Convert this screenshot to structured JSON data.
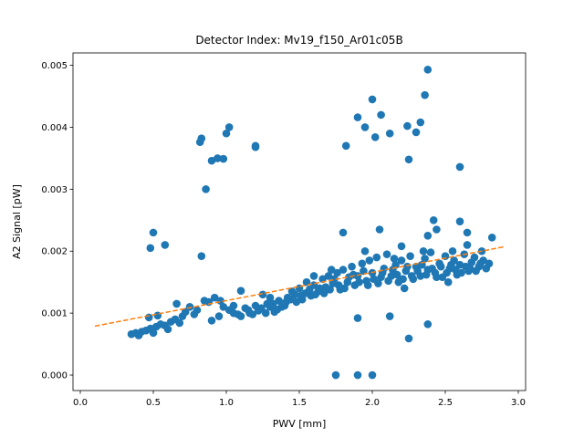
{
  "chart_data": {
    "type": "scatter",
    "title": "Detector Index: Mv19_f150_Ar01c05B",
    "xlabel": "PWV [mm]",
    "ylabel": "A2 Signal [pW]",
    "xlim": [
      -0.05,
      3.05
    ],
    "ylim": [
      -0.00025,
      0.0052
    ],
    "xticks": [
      0.0,
      0.5,
      1.0,
      1.5,
      2.0,
      2.5,
      3.0
    ],
    "xtick_labels": [
      "0.0",
      "0.5",
      "1.0",
      "1.5",
      "2.0",
      "2.5",
      "3.0"
    ],
    "yticks": [
      0.0,
      0.001,
      0.002,
      0.003,
      0.004,
      0.005
    ],
    "ytick_labels": [
      "0.000",
      "0.001",
      "0.002",
      "0.003",
      "0.004",
      "0.005"
    ],
    "colors": {
      "points": "#1f77b4",
      "fit": "#ff7f0e"
    },
    "series": [
      {
        "name": "measurements",
        "kind": "scatter",
        "points": [
          [
            0.35,
            0.00066
          ],
          [
            0.38,
            0.00068
          ],
          [
            0.4,
            0.00064
          ],
          [
            0.42,
            0.0007
          ],
          [
            0.45,
            0.00072
          ],
          [
            0.48,
            0.00075
          ],
          [
            0.5,
            0.00068
          ],
          [
            0.52,
            0.00078
          ],
          [
            0.55,
            0.00082
          ],
          [
            0.58,
            0.0008
          ],
          [
            0.6,
            0.00074
          ],
          [
            0.62,
            0.00086
          ],
          [
            0.65,
            0.0009
          ],
          [
            0.68,
            0.00084
          ],
          [
            0.7,
            0.00095
          ],
          [
            0.47,
            0.00093
          ],
          [
            0.53,
            0.00096
          ],
          [
            0.66,
            0.00115
          ],
          [
            0.72,
            0.00102
          ],
          [
            0.8,
            0.00105
          ],
          [
            0.85,
            0.0012
          ],
          [
            0.88,
            0.00118
          ],
          [
            0.92,
            0.00125
          ],
          [
            0.95,
            0.00095
          ],
          [
            0.98,
            0.0011
          ],
          [
            1.02,
            0.00105
          ],
          [
            1.05,
            0.001
          ],
          [
            1.08,
            0.00098
          ],
          [
            1.1,
            0.00136
          ],
          [
            1.13,
            0.00108
          ],
          [
            1.16,
            0.001
          ],
          [
            1.2,
            0.00112
          ],
          [
            1.22,
            0.00104
          ],
          [
            1.25,
            0.0013
          ],
          [
            1.28,
            0.00115
          ],
          [
            1.3,
            0.0011
          ],
          [
            1.33,
            0.00102
          ],
          [
            1.36,
            0.0012
          ],
          [
            1.4,
            0.00112
          ],
          [
            1.42,
            0.00125
          ],
          [
            1.45,
            0.00135
          ],
          [
            1.48,
            0.00118
          ],
          [
            1.5,
            0.0014
          ],
          [
            1.52,
            0.00122
          ],
          [
            1.55,
            0.0015
          ],
          [
            1.58,
            0.00128
          ],
          [
            1.6,
            0.00145
          ],
          [
            1.63,
            0.00135
          ],
          [
            1.66,
            0.00155
          ],
          [
            1.68,
            0.00142
          ],
          [
            1.7,
            0.0016
          ],
          [
            1.73,
            0.00148
          ],
          [
            1.76,
            0.00165
          ],
          [
            1.78,
            0.00138
          ],
          [
            1.8,
            0.0017
          ],
          [
            1.83,
            0.0015
          ],
          [
            1.86,
            0.00175
          ],
          [
            1.88,
            0.00145
          ],
          [
            1.9,
            0.0016
          ],
          [
            1.93,
            0.0018
          ],
          [
            1.96,
            0.00152
          ],
          [
            1.98,
            0.00185
          ],
          [
            2.0,
            0.00165
          ],
          [
            2.03,
            0.0019
          ],
          [
            2.06,
            0.00158
          ],
          [
            2.08,
            0.00172
          ],
          [
            2.1,
            0.00195
          ],
          [
            2.13,
            0.0016
          ],
          [
            2.16,
            0.00178
          ],
          [
            2.18,
            0.0015
          ],
          [
            2.2,
            0.00185
          ],
          [
            2.23,
            0.00168
          ],
          [
            2.26,
            0.00192
          ],
          [
            2.28,
            0.00155
          ],
          [
            2.3,
            0.00175
          ],
          [
            2.33,
            0.0016
          ],
          [
            2.36,
            0.00188
          ],
          [
            2.38,
            0.0017
          ],
          [
            2.4,
            0.00198
          ],
          [
            2.43,
            0.00165
          ],
          [
            2.46,
            0.0018
          ],
          [
            2.48,
            0.00158
          ],
          [
            2.5,
            0.00192
          ],
          [
            2.53,
            0.00172
          ],
          [
            2.56,
            0.00185
          ],
          [
            2.58,
            0.00162
          ],
          [
            2.6,
            0.00178
          ],
          [
            2.63,
            0.00195
          ],
          [
            2.66,
            0.00168
          ],
          [
            2.68,
            0.00182
          ],
          [
            2.7,
            0.0019
          ],
          [
            2.73,
            0.00175
          ],
          [
            2.76,
            0.00185
          ],
          [
            2.8,
            0.0018
          ],
          [
            2.82,
            0.00222
          ],
          [
            2.6,
            0.00248
          ],
          [
            2.65,
            0.0023
          ],
          [
            2.42,
            0.0025
          ],
          [
            2.44,
            0.00235
          ],
          [
            2.38,
            0.00225
          ],
          [
            2.05,
            0.00235
          ],
          [
            1.8,
            0.0023
          ],
          [
            2.2,
            0.00208
          ],
          [
            2.52,
            0.0015
          ],
          [
            2.22,
            0.0014
          ],
          [
            2.12,
            0.00095
          ],
          [
            1.9,
            0.00092
          ],
          [
            2.25,
            0.00059
          ],
          [
            2.38,
            0.00082
          ],
          [
            0.48,
            0.00205
          ],
          [
            0.5,
            0.0023
          ],
          [
            0.58,
            0.0021
          ],
          [
            0.83,
            0.00192
          ],
          [
            0.82,
            0.00376
          ],
          [
            0.83,
            0.00382
          ],
          [
            0.9,
            0.00346
          ],
          [
            0.94,
            0.0035
          ],
          [
            0.98,
            0.00349
          ],
          [
            1.0,
            0.0039
          ],
          [
            1.02,
            0.004
          ],
          [
            1.2,
            0.0037
          ],
          [
            1.2,
            0.00368
          ],
          [
            0.86,
            0.003
          ],
          [
            1.82,
            0.0037
          ],
          [
            1.9,
            0.00416
          ],
          [
            1.95,
            0.004
          ],
          [
            2.0,
            0.00445
          ],
          [
            2.02,
            0.00384
          ],
          [
            2.06,
            0.0042
          ],
          [
            2.12,
            0.0039
          ],
          [
            2.25,
            0.00348
          ],
          [
            2.24,
            0.00402
          ],
          [
            2.3,
            0.00392
          ],
          [
            2.33,
            0.00408
          ],
          [
            2.36,
            0.00452
          ],
          [
            2.38,
            0.00493
          ],
          [
            2.6,
            0.00336
          ],
          [
            1.75,
            0.0
          ],
          [
            1.9,
            0.0
          ],
          [
            2.0,
            0.0
          ],
          [
            0.75,
            0.0011
          ],
          [
            0.9,
            0.00088
          ],
          [
            1.05,
            0.00112
          ],
          [
            1.15,
            0.00105
          ],
          [
            1.18,
            0.00098
          ],
          [
            1.24,
            0.00108
          ],
          [
            1.27,
            0.001
          ],
          [
            1.32,
            0.00115
          ],
          [
            1.35,
            0.00106
          ],
          [
            1.38,
            0.0011
          ],
          [
            1.41,
            0.00118
          ],
          [
            1.44,
            0.00122
          ],
          [
            1.47,
            0.0013
          ],
          [
            1.51,
            0.00128
          ],
          [
            1.54,
            0.00132
          ],
          [
            1.57,
            0.00138
          ],
          [
            1.61,
            0.0013
          ],
          [
            1.64,
            0.0014
          ],
          [
            1.67,
            0.00132
          ],
          [
            1.71,
            0.00138
          ],
          [
            1.74,
            0.00155
          ],
          [
            1.77,
            0.00145
          ],
          [
            1.81,
            0.0014
          ],
          [
            1.84,
            0.00158
          ],
          [
            1.87,
            0.00162
          ],
          [
            1.91,
            0.0015
          ],
          [
            1.94,
            0.00168
          ],
          [
            1.97,
            0.00145
          ],
          [
            2.01,
            0.00155
          ],
          [
            2.04,
            0.00148
          ],
          [
            2.07,
            0.00165
          ],
          [
            2.11,
            0.00152
          ],
          [
            2.14,
            0.0017
          ],
          [
            2.17,
            0.00162
          ],
          [
            2.21,
            0.00155
          ],
          [
            2.24,
            0.00175
          ],
          [
            2.27,
            0.0016
          ],
          [
            2.31,
            0.00168
          ],
          [
            2.34,
            0.00178
          ],
          [
            2.37,
            0.00162
          ],
          [
            2.41,
            0.00172
          ],
          [
            2.44,
            0.00158
          ],
          [
            2.47,
            0.00175
          ],
          [
            2.51,
            0.00165
          ],
          [
            2.54,
            0.00178
          ],
          [
            2.57,
            0.0017
          ],
          [
            2.61,
            0.00165
          ],
          [
            2.64,
            0.00175
          ],
          [
            2.67,
            0.00172
          ],
          [
            2.71,
            0.00168
          ],
          [
            2.74,
            0.0018
          ],
          [
            2.78,
            0.00172
          ],
          [
            1.72,
            0.0017
          ],
          [
            1.95,
            0.002
          ],
          [
            2.15,
            0.00188
          ],
          [
            2.35,
            0.002
          ],
          [
            2.55,
            0.002
          ],
          [
            2.65,
            0.0021
          ],
          [
            2.75,
            0.002
          ],
          [
            1.6,
            0.0016
          ],
          [
            1.3,
            0.00125
          ],
          [
            1.1,
            0.00095
          ],
          [
            0.96,
            0.0012
          ],
          [
            0.78,
            0.00098
          ]
        ]
      },
      {
        "name": "linear fit",
        "kind": "dashed-line",
        "x": [
          0.1,
          2.9
        ],
        "y": [
          0.00079,
          0.00207
        ]
      }
    ]
  }
}
